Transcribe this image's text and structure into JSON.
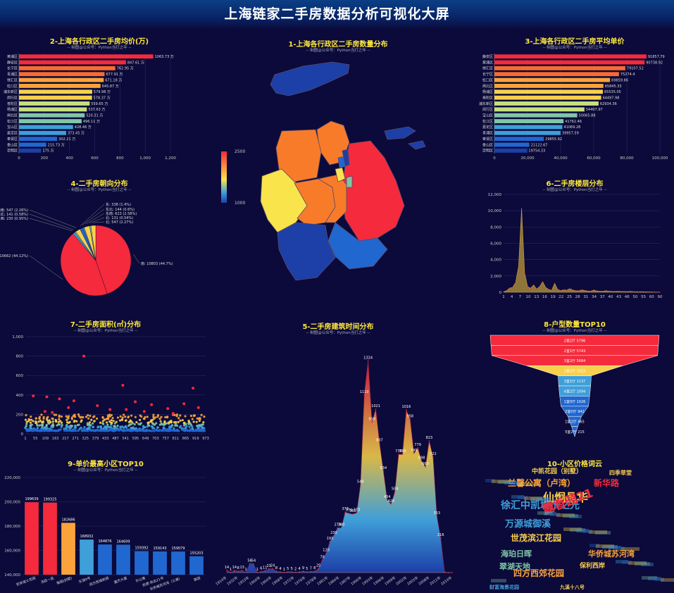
{
  "page": {
    "title": "上海链家二手房数据分析可视化大屏"
  },
  "colors": {
    "background": "#0b0a3a",
    "title": "#ffe93b",
    "bar_palette": [
      "#f52a3c",
      "#f86b32",
      "#f9a33a",
      "#f9d04c",
      "#c6e07e",
      "#7fc7a6",
      "#3f9fd8",
      "#2167d0",
      "#1c3fa8"
    ]
  },
  "charts": [
    {
      "id": "district_total_price",
      "type": "bar",
      "orientation": "horizontal",
      "title": "2-上海各行政区二手房均价(万)",
      "subtitle": "-- 制图@公众号：Python当打之年 --",
      "categories": [
        "黄浦区",
        "静安区",
        "长宁区",
        "青浦区",
        "徐汇区",
        "虹口区",
        "浦东新区",
        "闵行区",
        "普陀区",
        "杨浦区",
        "闸北区",
        "松江区",
        "宝山区",
        "嘉定区",
        "奉贤区",
        "金山区",
        "崇明区"
      ],
      "values": [
        1063.73,
        847.61,
        762.95,
        677.91,
        671.18,
        645.87,
        579.98,
        578.37,
        559.65,
        537.63,
        520.31,
        496.11,
        428.46,
        373.45,
        302.21,
        215.73,
        175
      ],
      "value_labels": [
        "1063.73 万",
        "847.61 万",
        "762.95 万",
        "677.91 万",
        "671.18 万",
        "645.87 万",
        "579.98 万",
        "578.37 万",
        "559.65 万",
        "537.63 万",
        "520.31 万",
        "496.11 万",
        "428.46 万",
        "373.45 万",
        "302.21 万",
        "215.73 万",
        "175 万"
      ],
      "xlim": [
        0,
        1200
      ],
      "xticks": [
        "0",
        "200",
        "400",
        "600",
        "800",
        "1,000",
        "1,200"
      ]
    },
    {
      "id": "district_map",
      "type": "map",
      "title": "1-上海各行政区二手房数量分布",
      "subtitle": "-- 制图@公众号：Python当打之年 --",
      "visual_map": {
        "min": "1000",
        "max": "2500"
      }
    },
    {
      "id": "district_unit_price",
      "type": "bar",
      "orientation": "horizontal",
      "title": "3-上海各行政区二手房平均单价",
      "subtitle": "-- 制图@公众号：Python当打之年 --",
      "categories": [
        "静安区",
        "黄浦区",
        "徐汇区",
        "长宁区",
        "虹口区",
        "闸北区",
        "杨浦区",
        "普陀区",
        "浦东新区",
        "闵行区",
        "宝山区",
        "松江区",
        "嘉定区",
        "青浦区",
        "奉贤区",
        "金山区",
        "崇明区"
      ],
      "values": [
        91857.79,
        90738.92,
        79107.52,
        75274.4,
        69859.86,
        65845.33,
        65535.05,
        64497.98,
        62934.36,
        54407.97,
        50065.88,
        41762.46,
        41069.28,
        39957.59,
        29855.92,
        21122.67,
        19754.33
      ],
      "value_labels": [
        "91857.79",
        "90738.92",
        "79107.52",
        "75274.4",
        "69859.86",
        "65845.33",
        "65535.05",
        "64497.98",
        "62934.36",
        "54407.97",
        "50065.88",
        "41762.46",
        "41069.28",
        "39957.59",
        "29855.92",
        "21122.67",
        "19754.33"
      ],
      "xlim": [
        0,
        100000
      ],
      "xticks": [
        "0",
        "20,000",
        "40,000",
        "60,000",
        "80,000",
        "100,000"
      ]
    },
    {
      "id": "orientation_pie",
      "type": "pie",
      "title": "4-二手房朝向分布",
      "subtitle": "-- 制图@公众号：Python当打之年 --",
      "slices": [
        {
          "name": "南",
          "value": 10803,
          "label": "南: 10803 (44.7%)",
          "color": "#f52a3c"
        },
        {
          "name": "南北",
          "value": 10662,
          "label": "南北: 10662 (44.12%)",
          "color": "#f52a3c"
        },
        {
          "name": "西",
          "value": 230,
          "label": "西: 230 (0.95%)",
          "color": "#3f9fd8"
        },
        {
          "name": "西北",
          "value": 141,
          "label": "西北: 141 (0.58%)",
          "color": "#7fc7a6"
        },
        {
          "name": "西南",
          "value": 547,
          "label": "西南: 547 (2.26%)",
          "color": "#f9d04c"
        },
        {
          "name": "东",
          "value": 338,
          "label": "东: 338 (1.4%)",
          "color": "#2167d0"
        },
        {
          "name": "东北",
          "value": 144,
          "label": "东北: 144 (0.6%)",
          "color": "#3f9fd8"
        },
        {
          "name": "东南",
          "value": 623,
          "label": "东南: 623 (2.58%)",
          "color": "#f9d04c"
        },
        {
          "name": "北",
          "value": 131,
          "label": "北: 131 (0.54%)",
          "color": "#7fc7a6"
        },
        {
          "name": "北(2)",
          "value": 547,
          "label": "北: 547 (2.27%)",
          "color": "#f9d04c"
        }
      ]
    },
    {
      "id": "floor_area",
      "type": "area",
      "title": "6-二手房楼层分布",
      "subtitle": "-- 制图@公众号：Python当打之年 --",
      "ylim": [
        0,
        12000
      ],
      "yticks": [
        "0",
        "2,000",
        "4,000",
        "6,000",
        "8,000",
        "10,000",
        "12,000"
      ],
      "xticks": [
        "1",
        "4",
        "7",
        "10",
        "13",
        "16",
        "19",
        "22",
        "25",
        "28",
        "31",
        "34",
        "37",
        "40",
        "43",
        "46",
        "50",
        "55",
        "60",
        "90"
      ],
      "values": [
        60,
        200,
        500,
        600,
        1200,
        3200,
        10300,
        2400,
        700,
        500,
        900,
        400,
        700,
        1300,
        600,
        350,
        250,
        1100,
        350,
        200,
        300,
        250,
        450,
        280,
        200,
        180,
        300,
        220,
        160,
        140,
        280,
        170,
        130,
        120,
        200,
        140,
        110,
        100,
        130,
        100,
        90,
        80,
        100,
        80,
        70,
        60,
        70,
        60,
        50,
        40,
        30,
        20,
        15
      ]
    },
    {
      "id": "area_scatter",
      "type": "scatter",
      "title": "7-二手房面积(㎡)分布",
      "subtitle": "-- 制图@公众号：Python当打之年 --",
      "ylim": [
        0,
        1000
      ],
      "yticks": [
        "0",
        "200",
        "400",
        "600",
        "800",
        "1,000"
      ],
      "xticks": [
        "1",
        "55",
        "109",
        "163",
        "217",
        "271",
        "325",
        "379",
        "433",
        "487",
        "541",
        "595",
        "649",
        "703",
        "757",
        "811",
        "865",
        "919",
        "973"
      ],
      "xlim": [
        1,
        1000
      ],
      "outliers": [
        [
          325,
          800
        ],
        [
          541,
          500
        ],
        [
          120,
          380
        ],
        [
          45,
          390
        ],
        [
          190,
          360
        ],
        [
          270,
          340
        ],
        [
          400,
          290
        ],
        [
          610,
          330
        ],
        [
          700,
          300
        ],
        [
          880,
          310
        ],
        [
          930,
          470
        ],
        [
          960,
          270
        ],
        [
          240,
          270
        ],
        [
          470,
          250
        ],
        [
          790,
          260
        ],
        [
          110,
          230
        ],
        [
          660,
          230
        ],
        [
          560,
          250
        ],
        [
          820,
          210
        ],
        [
          150,
          220
        ]
      ]
    },
    {
      "id": "build_year",
      "type": "area",
      "title": "5-二手房建筑时间分布",
      "subtitle": "-- 制图@公众号：Python当打之年 --",
      "years": [
        "1914",
        "1915",
        "1930",
        "1932",
        "1940",
        "1945",
        "1949",
        "1950",
        "1952",
        "1953",
        "1955",
        "1958",
        "1960",
        "1962",
        "1964",
        "1966",
        "1968",
        "1970",
        "1972",
        "1974",
        "1976",
        "1977",
        "1978",
        "1979",
        "1980",
        "1981",
        "1982",
        "1983",
        "1984",
        "1985",
        "1986",
        "1987",
        "1988",
        "1989",
        "1990",
        "1991",
        "1992",
        "1993",
        "1994",
        "1995",
        "1996",
        "1997",
        "1998",
        "1999",
        "2000",
        "2001",
        "2002",
        "2003",
        "2004",
        "2005",
        "2006",
        "2007",
        "2008",
        "2009",
        "2010",
        "2011",
        "2012",
        "2013",
        "2014",
        "2015"
      ],
      "values": [
        14,
        1,
        14,
        8,
        13,
        1,
        56,
        54,
        1,
        6,
        11,
        23,
        24,
        8,
        4,
        1,
        5,
        5,
        2,
        4,
        9,
        5,
        7,
        8,
        25,
        78,
        120,
        193,
        230,
        279,
        280,
        378,
        370,
        365,
        373,
        548,
        1110,
        1324,
        939,
        1021,
        807,
        634,
        454,
        428,
        504,
        739,
        739,
        1016,
        958,
        745,
        779,
        698,
        660,
        823,
        722,
        353,
        216,
        4,
        0,
        0
      ],
      "xticks": [
        "1914年",
        "1932年",
        "1953年",
        "1960年",
        "1964年",
        "1968年",
        "1972年",
        "1976年",
        "1978年",
        "1981年",
        "1984年",
        "1987年",
        "1990年",
        "1993年",
        "1996年",
        "1999年",
        "2002年",
        "2005年",
        "2008年",
        "2011年",
        "2014年"
      ]
    },
    {
      "id": "layout_funnel",
      "type": "funnel",
      "title": "8-户型数量TOP10",
      "subtitle": "-- 制图@公众号：Python当打之年 --",
      "items": [
        {
          "label": "2室2厅 5796",
          "value": 5796,
          "color": "#f52a3c"
        },
        {
          "label": "2室1厅 5743",
          "value": 5743,
          "color": "#f52a3c"
        },
        {
          "label": "3室2厅 5684",
          "value": 5684,
          "color": "#f52a3c"
        },
        {
          "label": "1室1厅 3315",
          "value": 3315,
          "color": "#f9d04c"
        },
        {
          "label": "3室1厅 1137",
          "value": 1137,
          "color": "#3f9fd8"
        },
        {
          "label": "4室2厅 1094",
          "value": 1094,
          "color": "#3f9fd8"
        },
        {
          "label": "1室0厅 1026",
          "value": 1026,
          "color": "#2167d0"
        },
        {
          "label": "2室0厅 942",
          "value": 942,
          "color": "#2167d0"
        },
        {
          "label": "1室2厅 465",
          "value": 465,
          "color": "#2167d0"
        },
        {
          "label": "5室2厅 215",
          "value": 215,
          "color": "#2167d0"
        }
      ]
    },
    {
      "id": "top10_unit_price",
      "type": "bar",
      "title": "9-单价最高小区TOP10",
      "subtitle": "-- 制图@公众号：Python当打之年 --",
      "categories": [
        "宏安瑞士花园",
        "汤臣一品",
        "衡园(别墅)",
        "东湖9号",
        "四方西城新园",
        "嘉杰大厦",
        "乐公寓",
        "凯德·尚志21号",
        "华侨城苏河湾（公寓）",
        "豪园"
      ],
      "values": [
        199639,
        199325,
        182686,
        168932,
        164876,
        164699,
        159392,
        159143,
        159079,
        155203
      ],
      "value_labels": [
        "199639",
        "199325",
        "182686",
        "168932",
        "164876",
        "164699",
        "159392",
        "159143",
        "159079",
        "155203"
      ],
      "ylim": [
        140000,
        220000
      ],
      "yticks": [
        "140,000",
        "160,000",
        "180,000",
        "200,000",
        "220,000"
      ],
      "colors": [
        "#f52a3c",
        "#f52a3c",
        "#f9a33a",
        "#3f9fd8",
        "#2167d0",
        "#2167d0",
        "#2167d0",
        "#2167d0",
        "#2167d0",
        "#2167d0"
      ]
    },
    {
      "id": "wordcloud",
      "type": "wordcloud",
      "title": "10-小区价格词云",
      "subtitle": "",
      "words": [
        {
          "text": "徐汇中凯城市之光",
          "color": "#3f9fd8",
          "size": 14
        },
        {
          "text": "兰馨公寓（卢湾）",
          "color": "#f9a33a",
          "size": 12
        },
        {
          "text": "仙炯晶华",
          "color": "#f9d04c",
          "size": 16
        },
        {
          "text": "露香园21",
          "color": "#f52a3c",
          "size": 17
        },
        {
          "text": "中凯花园（别墅）",
          "color": "#f9d04c",
          "size": 9
        },
        {
          "text": "万源城御溪",
          "color": "#3f9fd8",
          "size": 13
        },
        {
          "text": "世茂滨江花园",
          "color": "#f9d04c",
          "size": 12
        },
        {
          "text": "四方西郊花园",
          "color": "#f9a33a",
          "size": 12
        },
        {
          "text": "海珀日晖",
          "color": "#7fc7a6",
          "size": 11
        },
        {
          "text": "华侨城苏河湾",
          "color": "#f9a33a",
          "size": 11
        },
        {
          "text": "翠湖天地",
          "color": "#7fc7a6",
          "size": 11
        },
        {
          "text": "新华路",
          "color": "#f52a3c",
          "size": 12
        },
        {
          "text": "保利西岸",
          "color": "#f9d04c",
          "size": 9
        },
        {
          "text": "四季草堂",
          "color": "#f9d04c",
          "size": 8
        },
        {
          "text": "财富海景花园",
          "color": "#3f9fd8",
          "size": 7
        },
        {
          "text": "九溪十八号",
          "color": "#f9d04c",
          "size": 7
        }
      ]
    }
  ]
}
